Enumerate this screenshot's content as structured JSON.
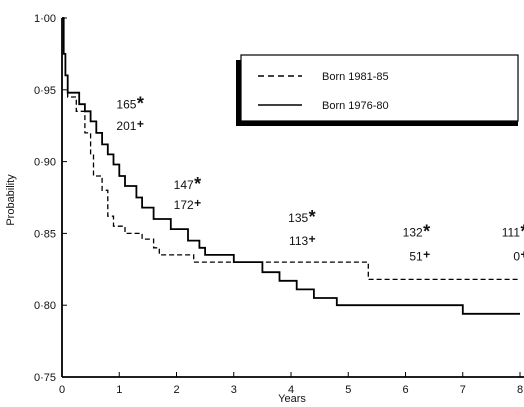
{
  "chart_data": {
    "type": "line",
    "xlabel": "Years",
    "ylabel": "Probability",
    "xlim": [
      0,
      8
    ],
    "ylim": [
      0.75,
      1.0
    ],
    "x_ticks": [
      "0",
      "1",
      "2",
      "3",
      "4",
      "5",
      "6",
      "7",
      "8"
    ],
    "y_ticks": [
      "0·75",
      "0·80",
      "0·85",
      "0·90",
      "0·95",
      "1·00"
    ],
    "grid": false,
    "legend": "top-right",
    "series": [
      {
        "name": "Born 1981-85",
        "style": "dashed",
        "color": "#000000",
        "steps": [
          [
            0,
            1.0
          ],
          [
            0.03,
            0.975
          ],
          [
            0.06,
            0.96
          ],
          [
            0.1,
            0.945
          ],
          [
            0.25,
            0.935
          ],
          [
            0.4,
            0.92
          ],
          [
            0.5,
            0.905
          ],
          [
            0.55,
            0.89
          ],
          [
            0.7,
            0.88
          ],
          [
            0.8,
            0.862
          ],
          [
            0.9,
            0.855
          ],
          [
            1.1,
            0.85
          ],
          [
            1.4,
            0.846
          ],
          [
            1.6,
            0.84
          ],
          [
            1.7,
            0.835
          ],
          [
            2.3,
            0.83
          ],
          [
            5.35,
            0.818
          ],
          [
            8.0,
            0.818
          ]
        ]
      },
      {
        "name": "Born 1976-80",
        "style": "solid",
        "color": "#000000",
        "steps": [
          [
            0,
            1.0
          ],
          [
            0.03,
            0.975
          ],
          [
            0.06,
            0.96
          ],
          [
            0.1,
            0.948
          ],
          [
            0.3,
            0.94
          ],
          [
            0.4,
            0.935
          ],
          [
            0.5,
            0.928
          ],
          [
            0.6,
            0.92
          ],
          [
            0.7,
            0.912
          ],
          [
            0.8,
            0.905
          ],
          [
            0.9,
            0.898
          ],
          [
            1.0,
            0.89
          ],
          [
            1.1,
            0.883
          ],
          [
            1.3,
            0.875
          ],
          [
            1.4,
            0.868
          ],
          [
            1.6,
            0.86
          ],
          [
            1.9,
            0.853
          ],
          [
            2.2,
            0.845
          ],
          [
            2.4,
            0.84
          ],
          [
            2.5,
            0.835
          ],
          [
            3.0,
            0.83
          ],
          [
            3.5,
            0.823
          ],
          [
            3.8,
            0.817
          ],
          [
            4.1,
            0.811
          ],
          [
            4.4,
            0.805
          ],
          [
            4.8,
            0.8
          ],
          [
            7.0,
            0.794
          ],
          [
            8.0,
            0.794
          ]
        ]
      }
    ],
    "annotations": [
      {
        "x": 1.3,
        "y": 0.937,
        "value": "165",
        "marker": "*"
      },
      {
        "x": 1.3,
        "y": 0.922,
        "value": "201",
        "marker": "+"
      },
      {
        "x": 2.3,
        "y": 0.881,
        "value": "147",
        "marker": "*"
      },
      {
        "x": 2.3,
        "y": 0.867,
        "value": "172",
        "marker": "+"
      },
      {
        "x": 4.3,
        "y": 0.858,
        "value": "135",
        "marker": "*"
      },
      {
        "x": 4.3,
        "y": 0.842,
        "value": "113",
        "marker": "+"
      },
      {
        "x": 6.3,
        "y": 0.848,
        "value": "132",
        "marker": "*"
      },
      {
        "x": 6.3,
        "y": 0.831,
        "value": "51",
        "marker": "+"
      },
      {
        "x": 8.0,
        "y": 0.848,
        "value": "111",
        "marker": "*"
      },
      {
        "x": 8.0,
        "y": 0.831,
        "value": "0",
        "marker": "+"
      }
    ]
  }
}
